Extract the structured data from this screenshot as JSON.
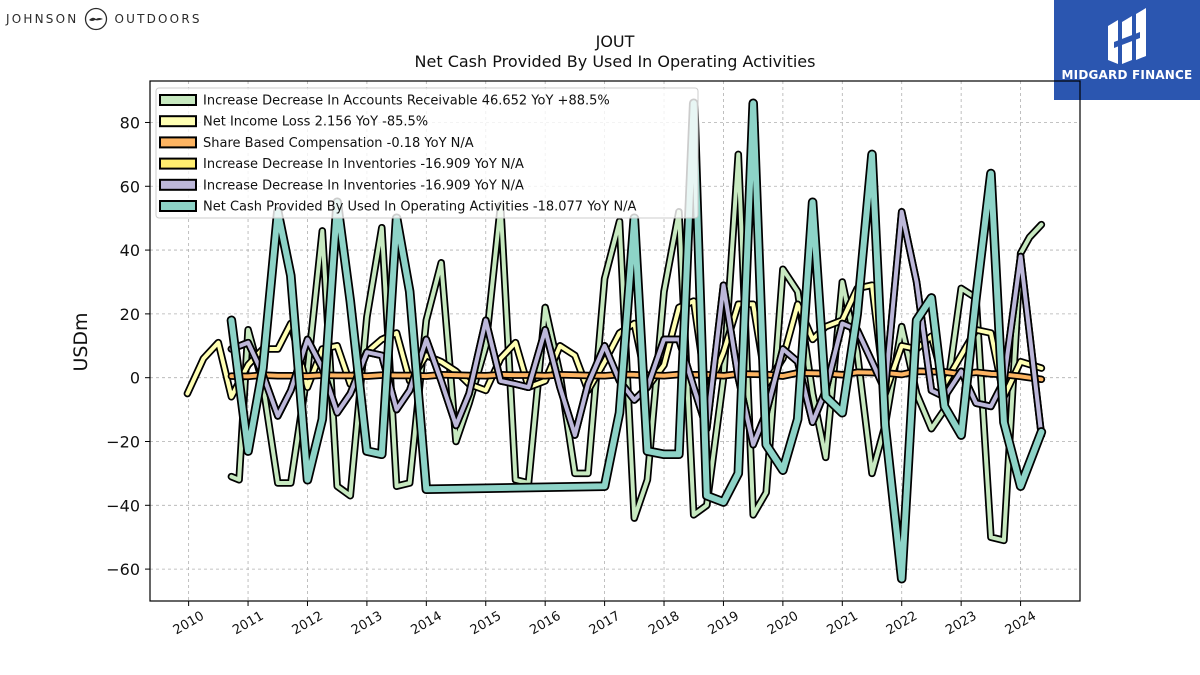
{
  "header": {
    "left_brand": "JOHNSON OUTDOORS",
    "right_brand": "MIDGARD FINANCE"
  },
  "colors": {
    "right_brand_bg": "#2b56b0",
    "grid": "#b0b0b0",
    "axis": "#000000"
  },
  "chart_data": {
    "type": "line",
    "title": "JOUT",
    "subtitle": "Net Cash Provided By Used In Operating Activities",
    "xlabel": "",
    "ylabel": "USDm",
    "xlim": [
      2009.35,
      2025.0
    ],
    "ylim": [
      -70,
      93
    ],
    "x_ticks": [
      "2010",
      "2011",
      "2012",
      "2013",
      "2014",
      "2015",
      "2016",
      "2017",
      "2018",
      "2019",
      "2020",
      "2021",
      "2022",
      "2023",
      "2024"
    ],
    "y_ticks": [
      80,
      60,
      40,
      20,
      0,
      -20,
      -40,
      -60
    ],
    "y_tick_labels": [
      "80",
      "60",
      "40",
      "20",
      "0",
      "−20",
      "−40",
      "−60"
    ],
    "grid": true,
    "legend_position": "top-left",
    "series": [
      {
        "name": "Increase Decrease In Accounts Receivable",
        "legend_label": "Increase Decrease In Accounts Receivable  46.652 YoY +88.5%",
        "color": "#c7e9c0",
        "width": 4,
        "x": [
          2010.72,
          2010.85,
          2011.0,
          2011.25,
          2011.5,
          2011.72,
          2012.0,
          2012.25,
          2012.5,
          2012.72,
          2013.0,
          2013.25,
          2013.5,
          2013.72,
          2014.0,
          2014.25,
          2014.5,
          2014.72,
          2015.0,
          2015.25,
          2015.5,
          2015.72,
          2016.0,
          2016.25,
          2016.5,
          2016.72,
          2017.0,
          2017.25,
          2017.5,
          2017.72,
          2018.0,
          2018.25,
          2018.5,
          2018.72,
          2019.0,
          2019.25,
          2019.5,
          2019.72,
          2020.0,
          2020.25,
          2020.5,
          2020.72,
          2021.0,
          2021.25,
          2021.5,
          2021.72,
          2022.0,
          2022.25,
          2022.5,
          2022.72,
          2023.0,
          2023.25,
          2023.5,
          2023.72,
          2024.0,
          2024.15,
          2024.35
        ],
        "y": [
          -31,
          -32,
          15,
          -2,
          -33,
          -33,
          2,
          46,
          -34,
          -37,
          19,
          47,
          -34,
          -33,
          18,
          36,
          -20,
          -8,
          10,
          54,
          -32,
          -33,
          22,
          1,
          -30,
          -30,
          31,
          49,
          -44,
          -32,
          27,
          52,
          -43,
          -40,
          0,
          70,
          -43,
          -36,
          34,
          27,
          -5,
          -25,
          30,
          8,
          -30,
          -15,
          16,
          -5,
          -16,
          -10,
          28,
          25,
          -50,
          -51,
          39,
          44,
          48
        ]
      },
      {
        "name": "Net Income Loss",
        "legend_label": "Net Income Loss  2.156 YoY -85.5%",
        "color": "#ffffb3",
        "width": 4,
        "x": [
          2009.98,
          2010.25,
          2010.5,
          2010.72,
          2011.0,
          2011.25,
          2011.5,
          2011.72,
          2012.0,
          2012.25,
          2012.5,
          2012.72,
          2013.0,
          2013.25,
          2013.5,
          2013.72,
          2014.0,
          2014.25,
          2014.5,
          2014.72,
          2015.0,
          2015.25,
          2015.5,
          2015.72,
          2016.0,
          2016.25,
          2016.5,
          2016.72,
          2017.0,
          2017.25,
          2017.5,
          2017.72,
          2018.0,
          2018.25,
          2018.5,
          2018.72,
          2019.0,
          2019.25,
          2019.5,
          2019.72,
          2020.0,
          2020.25,
          2020.5,
          2020.72,
          2021.0,
          2021.25,
          2021.5,
          2021.72,
          2022.0,
          2022.25,
          2022.5,
          2022.72,
          2023.0,
          2023.25,
          2023.5,
          2023.72,
          2024.0,
          2024.35
        ],
        "y": [
          -5,
          6,
          11,
          -6,
          4,
          9,
          9,
          17,
          -3,
          9,
          10,
          -2,
          8,
          12,
          14,
          -1,
          7,
          5,
          2,
          -2,
          -4,
          6,
          11,
          -3,
          -1,
          10,
          7,
          -4,
          5,
          14,
          17,
          -3,
          4,
          22,
          24,
          -5,
          8,
          23,
          23,
          -2,
          6,
          23,
          12,
          16,
          18,
          28,
          29,
          -5,
          10,
          9,
          13,
          -2,
          7,
          15,
          14,
          -6,
          5,
          3
        ]
      },
      {
        "name": "Share Based Compensation",
        "legend_label": "Share Based Compensation  -0.18 YoY N/A",
        "color": "#fdb462",
        "width": 4,
        "x": [
          2010.72,
          2011.0,
          2011.25,
          2011.5,
          2011.72,
          2012.0,
          2012.25,
          2012.5,
          2012.72,
          2013.0,
          2013.25,
          2013.5,
          2013.72,
          2014.0,
          2014.25,
          2014.5,
          2014.72,
          2015.0,
          2015.25,
          2015.5,
          2015.72,
          2016.0,
          2016.25,
          2016.5,
          2016.72,
          2017.0,
          2017.25,
          2017.5,
          2017.72,
          2018.0,
          2018.25,
          2018.5,
          2018.72,
          2019.0,
          2019.25,
          2019.5,
          2019.72,
          2020.0,
          2020.25,
          2020.5,
          2020.72,
          2021.0,
          2021.25,
          2021.5,
          2021.72,
          2022.0,
          2022.25,
          2022.5,
          2022.72,
          2023.0,
          2023.25,
          2023.5,
          2023.72,
          2024.0,
          2024.35
        ],
        "y": [
          0.5,
          0.4,
          0.8,
          0.6,
          0.6,
          0.5,
          0.8,
          0.7,
          0.7,
          0.5,
          0.8,
          0.7,
          0.7,
          0.5,
          0.9,
          0.8,
          0.7,
          0.6,
          0.9,
          0.8,
          0.8,
          0.6,
          0.9,
          0.8,
          0.7,
          0.6,
          1.0,
          0.9,
          0.8,
          0.6,
          1.0,
          0.9,
          0.9,
          0.6,
          1.2,
          1.1,
          1.0,
          0.5,
          1.5,
          1.4,
          1.3,
          0.9,
          1.7,
          1.6,
          1.5,
          1.0,
          2.0,
          1.9,
          1.8,
          1.1,
          1.7,
          1.2,
          1.0,
          0.4,
          -0.5
        ]
      },
      {
        "name": "Increase Decrease In Inventories",
        "legend_label": "Increase Decrease In Inventories  -16.909 YoY N/A",
        "color": "#ffed6f",
        "width": 4,
        "x": [
          2010.72,
          2011.0,
          2011.25,
          2011.5,
          2011.72,
          2012.0,
          2012.25,
          2012.5,
          2012.72,
          2013.0,
          2013.25,
          2013.5,
          2013.72,
          2014.0,
          2014.25,
          2014.5,
          2014.72,
          2015.0,
          2015.25,
          2015.5,
          2015.72,
          2016.0,
          2016.25,
          2016.5,
          2016.72,
          2017.0,
          2017.25,
          2017.5,
          2017.72,
          2018.0,
          2018.25,
          2018.5,
          2018.72,
          2019.0,
          2019.25,
          2019.5,
          2019.72,
          2020.0,
          2020.25,
          2020.5,
          2020.72,
          2021.0,
          2021.25,
          2021.5,
          2021.72,
          2022.0,
          2022.25,
          2022.5,
          2022.72,
          2023.0,
          2023.25,
          2023.5,
          2023.72,
          2024.0,
          2024.35
        ],
        "y": [
          9,
          11,
          1,
          -12,
          -4,
          12,
          3,
          -11,
          -5,
          8,
          7,
          -10,
          -4,
          12,
          -1,
          -15,
          -5,
          18,
          -1,
          -2,
          -3,
          15,
          -3,
          -18,
          -2,
          10,
          -1,
          -7,
          -3,
          12,
          12,
          -3,
          -16,
          29,
          0,
          -21,
          -11,
          9,
          5,
          -14,
          -4,
          17,
          15,
          5,
          -4,
          52,
          30,
          -4,
          -6,
          2,
          -8,
          -9,
          -1,
          38,
          -18
        ]
      },
      {
        "name": "Increase Decrease In Inventories",
        "legend_label": "Increase Decrease In Inventories  -16.909 YoY N/A",
        "color": "#bcb7d9",
        "width": 4,
        "x": [
          2010.72,
          2011.0,
          2011.25,
          2011.5,
          2011.72,
          2012.0,
          2012.25,
          2012.5,
          2012.72,
          2013.0,
          2013.25,
          2013.5,
          2013.72,
          2014.0,
          2014.25,
          2014.5,
          2014.72,
          2015.0,
          2015.25,
          2015.5,
          2015.72,
          2016.0,
          2016.25,
          2016.5,
          2016.72,
          2017.0,
          2017.25,
          2017.5,
          2017.72,
          2018.0,
          2018.25,
          2018.5,
          2018.72,
          2019.0,
          2019.25,
          2019.5,
          2019.72,
          2020.0,
          2020.25,
          2020.5,
          2020.72,
          2021.0,
          2021.25,
          2021.5,
          2021.72,
          2022.0,
          2022.25,
          2022.5,
          2022.72,
          2023.0,
          2023.25,
          2023.5,
          2023.72,
          2024.0,
          2024.35
        ],
        "y": [
          9,
          11,
          1,
          -12,
          -4,
          12,
          3,
          -11,
          -5,
          8,
          7,
          -10,
          -4,
          12,
          -1,
          -15,
          -5,
          18,
          -1,
          -2,
          -3,
          15,
          -3,
          -18,
          -2,
          10,
          -1,
          -7,
          -3,
          12,
          12,
          -3,
          -16,
          29,
          0,
          -21,
          -11,
          9,
          5,
          -14,
          -4,
          17,
          15,
          5,
          -4,
          52,
          30,
          -4,
          -6,
          2,
          -8,
          -9,
          -1,
          38,
          -18
        ]
      },
      {
        "name": "Net Cash Provided By Used In Operating Activities",
        "legend_label": "Net Cash Provided By Used In Operating Activities  -18.077 YoY N/A",
        "color": "#8dd3c7",
        "width": 6,
        "x": [
          2010.72,
          2011.0,
          2011.25,
          2011.5,
          2011.72,
          2012.0,
          2012.25,
          2012.5,
          2012.72,
          2013.0,
          2013.25,
          2013.5,
          2013.72,
          2014.0,
          2017.0,
          2017.25,
          2017.5,
          2017.72,
          2018.0,
          2018.25,
          2018.5,
          2018.72,
          2019.0,
          2019.25,
          2019.5,
          2019.72,
          2020.0,
          2020.25,
          2020.5,
          2020.72,
          2021.0,
          2021.25,
          2021.5,
          2021.72,
          2022.0,
          2022.25,
          2022.5,
          2022.72,
          2023.0,
          2023.25,
          2023.5,
          2023.72,
          2024.0,
          2024.35
        ],
        "y": [
          18,
          -23,
          3,
          52,
          32,
          -32,
          -13,
          55,
          24,
          -23,
          -24,
          50,
          27,
          -35,
          -34,
          -11,
          50,
          -23,
          -24,
          -24,
          86,
          -37,
          -39,
          -30,
          86,
          -21,
          -29,
          -13,
          55,
          -6,
          -11,
          20,
          70,
          -15,
          -63,
          18,
          25,
          -9,
          -18,
          25,
          64,
          -14,
          -34,
          -17
        ]
      }
    ]
  }
}
